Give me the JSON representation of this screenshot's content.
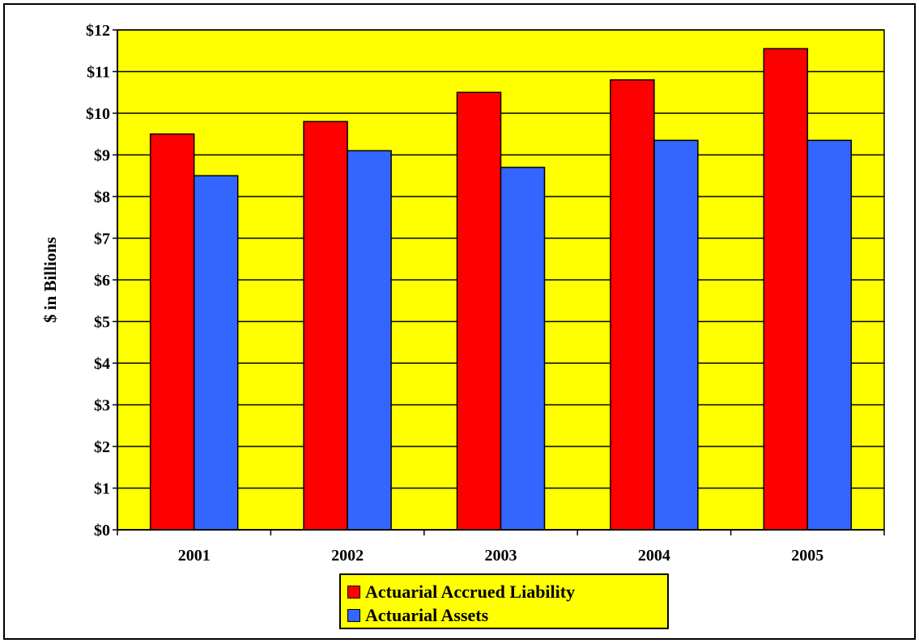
{
  "chart_data": {
    "type": "bar",
    "categories": [
      "2001",
      "2002",
      "2003",
      "2004",
      "2005"
    ],
    "series": [
      {
        "name": "Actuarial Accrued Liability",
        "values": [
          9.5,
          9.8,
          10.5,
          10.8,
          11.55
        ],
        "color": "#ff0000"
      },
      {
        "name": "Actuarial Assets",
        "values": [
          8.5,
          9.1,
          8.7,
          9.35,
          9.35
        ],
        "color": "#3366ff"
      }
    ],
    "title": "",
    "xlabel": "",
    "ylabel": "$ in Billions",
    "ylim": [
      0,
      12
    ],
    "yticks": [
      0,
      1,
      2,
      3,
      4,
      5,
      6,
      7,
      8,
      9,
      10,
      11,
      12
    ],
    "ytick_labels": [
      "$0",
      "$1",
      "$2",
      "$3",
      "$4",
      "$5",
      "$6",
      "$7",
      "$8",
      "$9",
      "$10",
      "$11",
      "$12"
    ],
    "plot_background": "#ffff00",
    "grid": true,
    "legend_position": "bottom"
  }
}
